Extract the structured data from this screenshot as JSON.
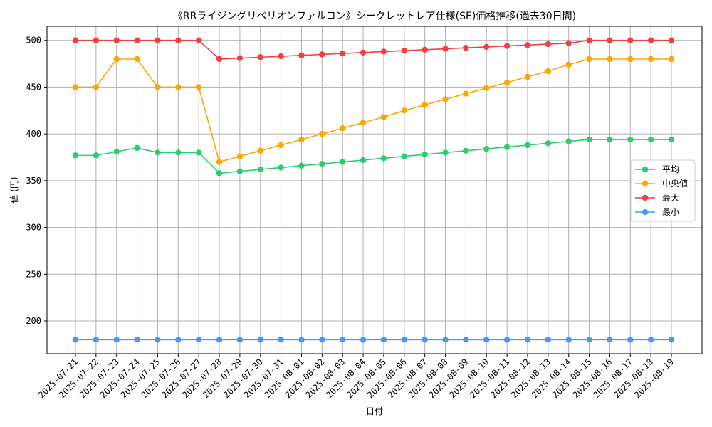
{
  "chart_data": {
    "type": "line",
    "title": "《RRライジングリベリオンファルコン》シークレットレア仕様(SE)価格推移(過去30日間)",
    "xlabel": "日付",
    "ylabel": "値 (円)",
    "ylim": [
      165,
      515
    ],
    "yticks": [
      200,
      250,
      300,
      350,
      400,
      450,
      500
    ],
    "grid": true,
    "legend_position": "center-right",
    "categories": [
      "2025-07-21",
      "2025-07-22",
      "2025-07-23",
      "2025-07-24",
      "2025-07-25",
      "2025-07-26",
      "2025-07-27",
      "2025-07-28",
      "2025-07-29",
      "2025-07-30",
      "2025-07-31",
      "2025-08-01",
      "2025-08-02",
      "2025-08-03",
      "2025-08-04",
      "2025-08-05",
      "2025-08-06",
      "2025-08-07",
      "2025-08-08",
      "2025-08-09",
      "2025-08-10",
      "2025-08-11",
      "2025-08-12",
      "2025-08-13",
      "2025-08-14",
      "2025-08-15",
      "2025-08-16",
      "2025-08-17",
      "2025-08-18",
      "2025-08-19"
    ],
    "series": [
      {
        "name": "平均",
        "color": "#2ecc71",
        "values": [
          377,
          377,
          381,
          385,
          380,
          380,
          380,
          358,
          360,
          362,
          364,
          366,
          368,
          370,
          372,
          374,
          376,
          378,
          380,
          382,
          384,
          386,
          388,
          390,
          392,
          394,
          394,
          394,
          394,
          394
        ]
      },
      {
        "name": "中央値",
        "color": "#ffa500",
        "values": [
          450,
          450,
          480,
          480,
          450,
          450,
          450,
          370,
          376,
          382,
          388,
          394,
          400,
          406,
          412,
          418,
          425,
          431,
          437,
          443,
          449,
          455,
          461,
          467,
          474,
          480,
          480,
          480,
          480,
          480
        ]
      },
      {
        "name": "最大",
        "color": "#f04040",
        "values": [
          500,
          500,
          500,
          500,
          500,
          500,
          500,
          480,
          481,
          482,
          483,
          484,
          485,
          486,
          487,
          488,
          489,
          490,
          491,
          492,
          493,
          494,
          495,
          496,
          497,
          500,
          500,
          500,
          500,
          500
        ]
      },
      {
        "name": "最小",
        "color": "#4499ff",
        "values": [
          180,
          180,
          180,
          180,
          180,
          180,
          180,
          180,
          180,
          180,
          180,
          180,
          180,
          180,
          180,
          180,
          180,
          180,
          180,
          180,
          180,
          180,
          180,
          180,
          180,
          180,
          180,
          180,
          180,
          180
        ]
      }
    ]
  }
}
